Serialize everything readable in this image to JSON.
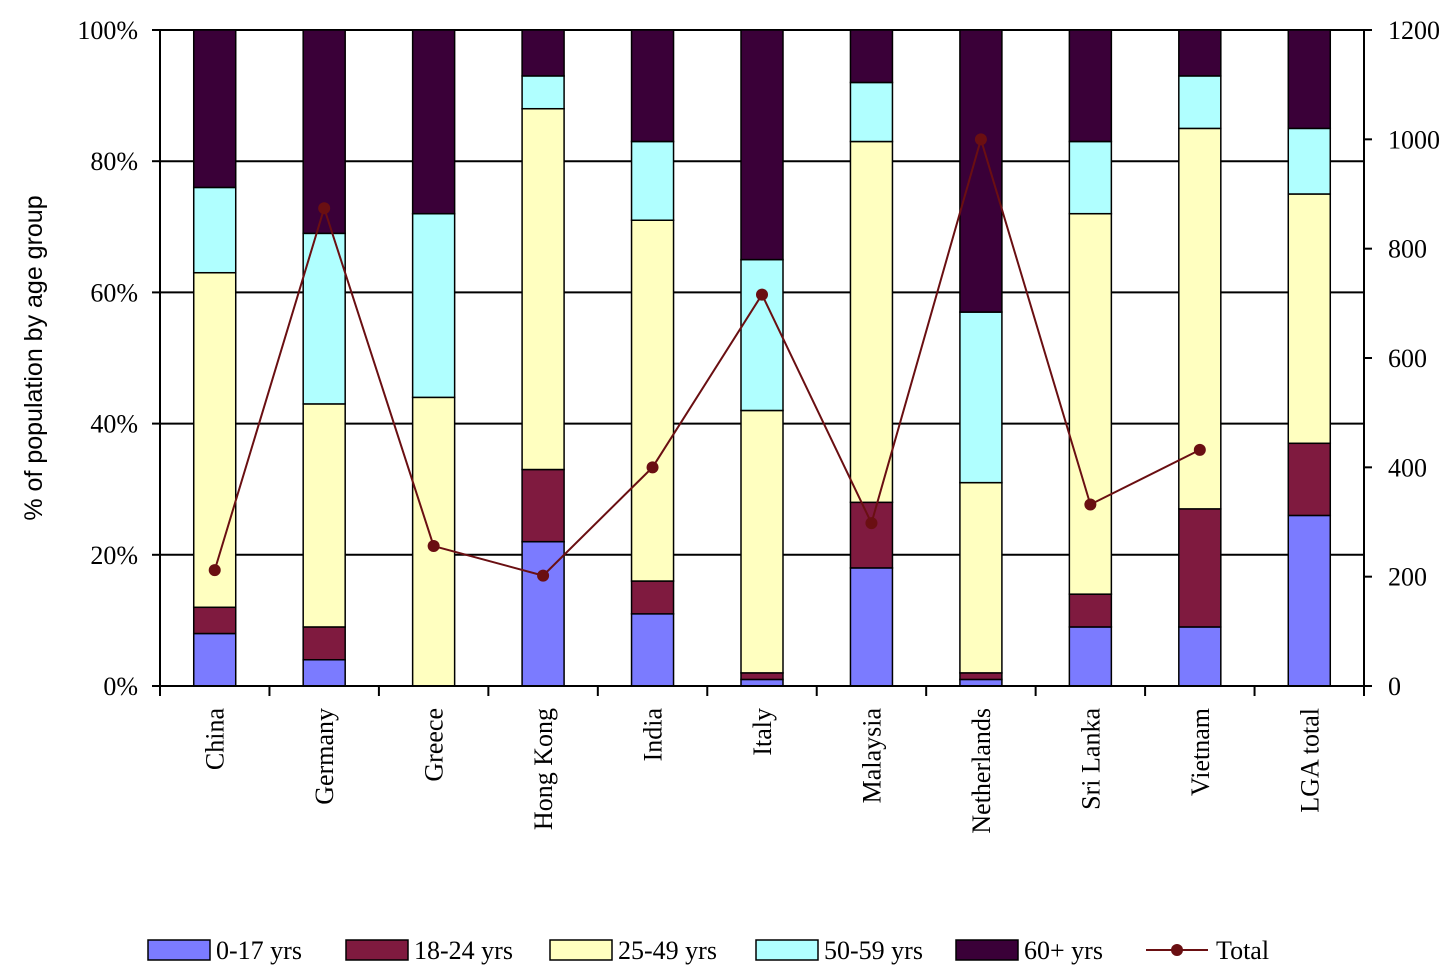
{
  "chart_data": {
    "type": "bar",
    "stacked": true,
    "categories": [
      "China",
      "Germany",
      "Greece",
      "Hong Kong",
      "India",
      "Italy",
      "Malaysia",
      "Netherlands",
      "Sri Lanka",
      "Vietnam",
      "LGA total"
    ],
    "series": [
      {
        "name": "0-17 yrs",
        "color": "#7b7bff",
        "values": [
          8,
          4,
          0,
          22,
          11,
          1,
          18,
          1,
          9,
          9,
          26
        ]
      },
      {
        "name": "18-24 yrs",
        "color": "#7f1a3f",
        "values": [
          4,
          5,
          0,
          11,
          5,
          1,
          10,
          1,
          5,
          18,
          11
        ]
      },
      {
        "name": "25-49 yrs",
        "color": "#ffffc0",
        "values": [
          51,
          34,
          44,
          55,
          55,
          40,
          55,
          29,
          58,
          58,
          38
        ]
      },
      {
        "name": "50-59 yrs",
        "color": "#b0ffff",
        "values": [
          13,
          26,
          28,
          5,
          12,
          23,
          9,
          26,
          11,
          8,
          10
        ]
      },
      {
        "name": "60+ yrs",
        "color": "#3a0038",
        "values": [
          24,
          31,
          28,
          7,
          17,
          35,
          8,
          43,
          17,
          7,
          15
        ]
      }
    ],
    "line_series": {
      "name": "Total",
      "color": "#6a0f12",
      "axis": "right",
      "values": [
        212,
        874,
        256,
        202,
        400,
        716,
        298,
        1000,
        332,
        432,
        null
      ]
    },
    "ylabel": "% of population by age group",
    "ylim": [
      0,
      100
    ],
    "y_ticks": [
      "0%",
      "20%",
      "40%",
      "60%",
      "80%",
      "100%"
    ],
    "y2lim": [
      0,
      1200
    ],
    "y2_ticks": [
      "0",
      "200",
      "400",
      "600",
      "800",
      "1000",
      "1200"
    ],
    "grid": true,
    "legend_position": "bottom"
  }
}
